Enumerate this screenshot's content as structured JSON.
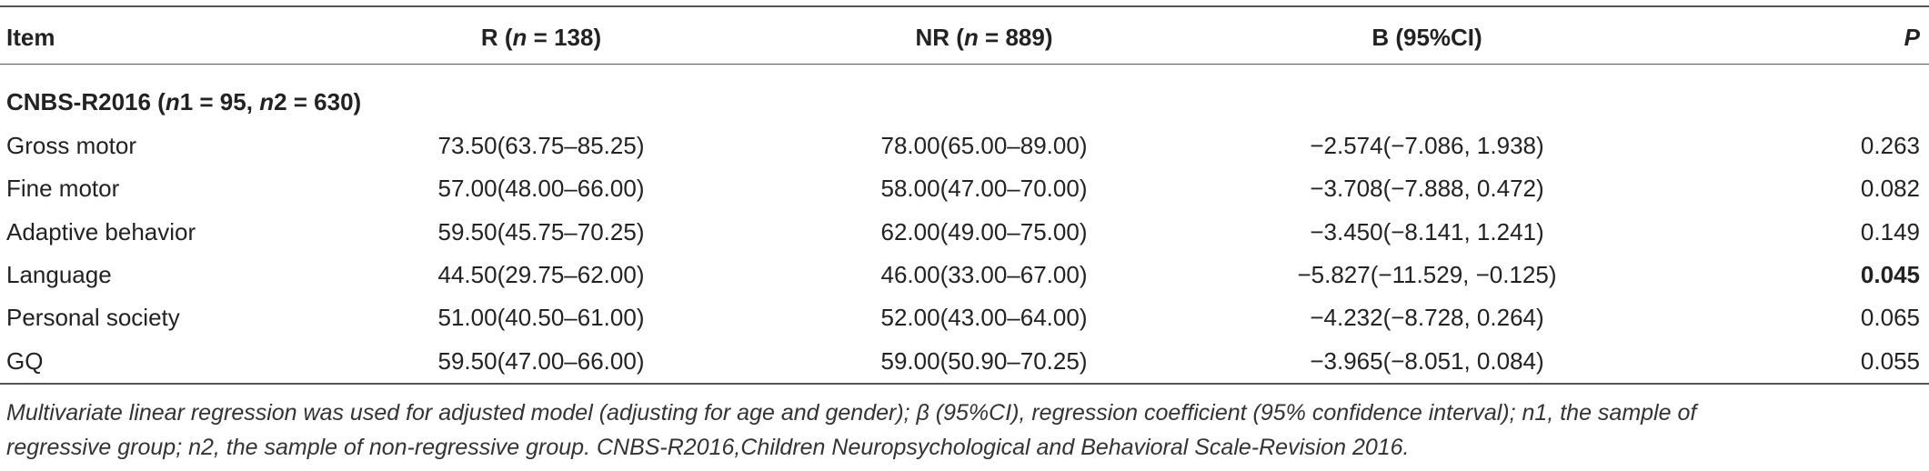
{
  "table": {
    "header": {
      "item": "Item",
      "r": [
        "R (",
        "n",
        " = 138)"
      ],
      "nr": [
        "NR (",
        "n",
        " = 889)"
      ],
      "b": "B (95%CI)",
      "p": "P"
    },
    "section": [
      "CNBS-R2016 (",
      "n",
      "1 = 95, ",
      "n",
      "2 = 630)"
    ],
    "rows": [
      [
        "Gross motor",
        "73.50(63.75–85.25)",
        "78.00(65.00–89.00)",
        "−2.574(−7.086, 1.938)",
        "0.263"
      ],
      [
        "Fine motor",
        "57.00(48.00–66.00)",
        "58.00(47.00–70.00)",
        "−3.708(−7.888, 0.472)",
        "0.082"
      ],
      [
        "Adaptive behavior",
        "59.50(45.75–70.25)",
        "62.00(49.00–75.00)",
        "−3.450(−8.141, 1.241)",
        "0.149"
      ],
      [
        "Language",
        "44.50(29.75–62.00)",
        "46.00(33.00–67.00)",
        "−5.827(−11.529, −0.125)",
        "0.045"
      ],
      [
        "Personal society",
        "51.00(40.50–61.00)",
        "52.00(43.00–64.00)",
        "−4.232(−8.728, 0.264)",
        "0.065"
      ],
      [
        "GQ",
        "59.50(47.00–66.00)",
        "59.00(50.90–70.25)",
        "−3.965(−8.051, 0.084)",
        "0.055"
      ]
    ],
    "footnote": [
      "Multivariate linear regression was used for adjusted model (adjusting for age and gender); β (95%CI), regression coefficient (95% confidence interval); n1, the sample of",
      "regressive group; n2, the sample of non-regressive group. CNBS-R2016,Children Neuropsychological and Behavioral Scale-Revision 2016."
    ]
  }
}
